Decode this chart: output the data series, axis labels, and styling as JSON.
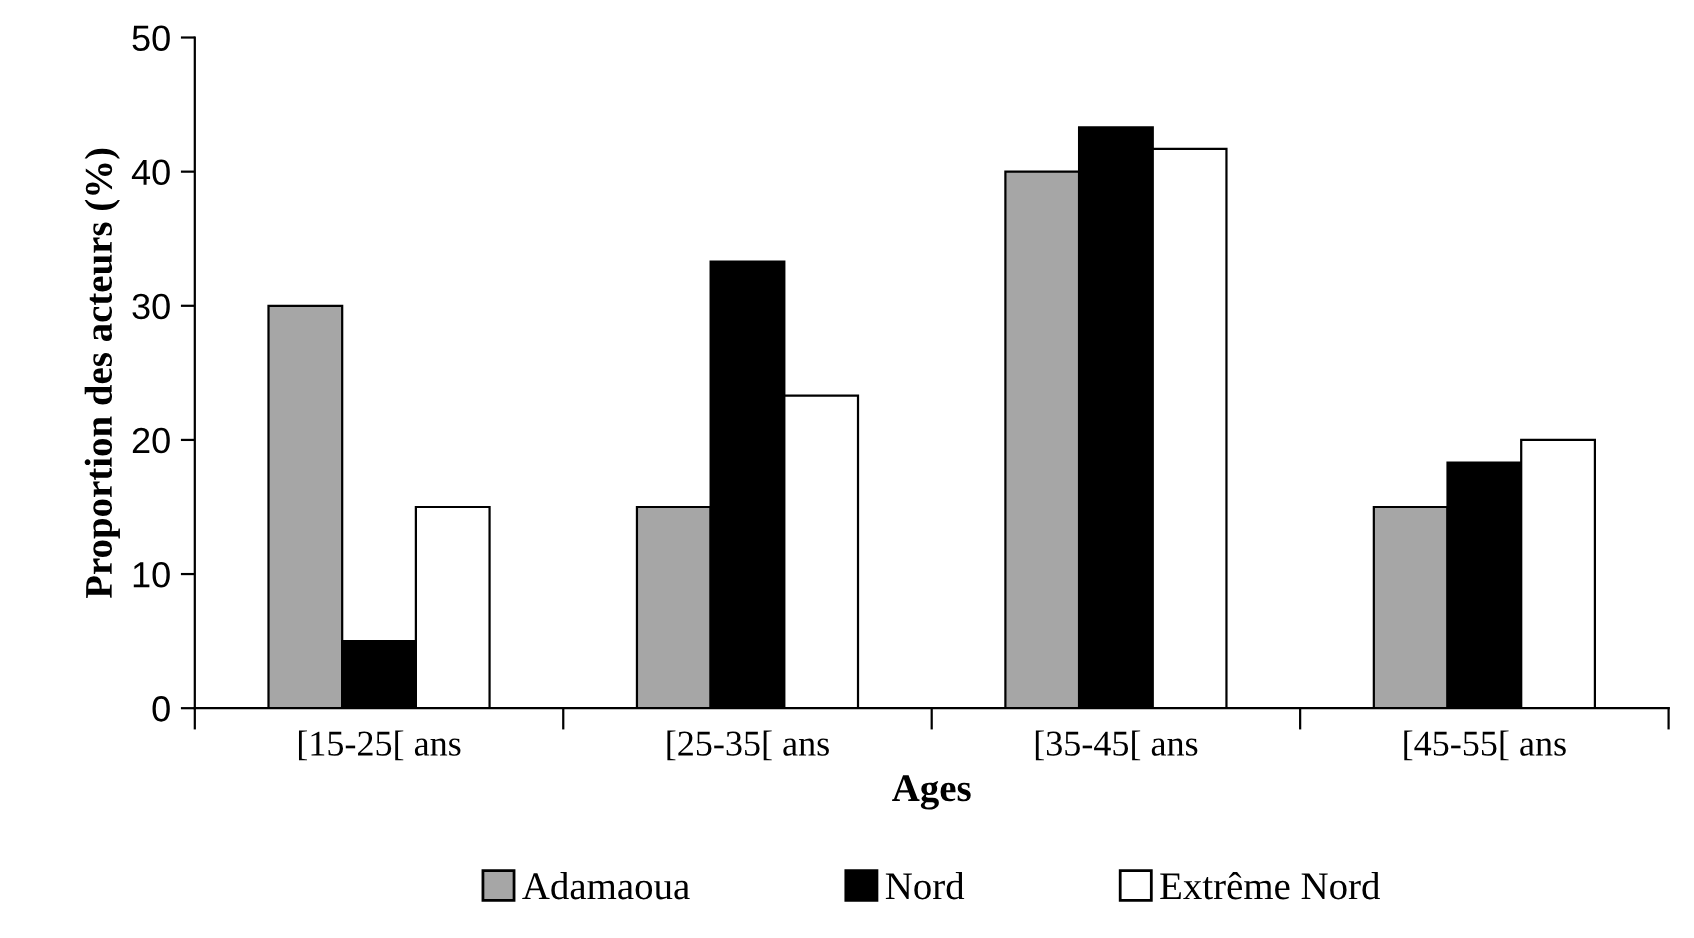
{
  "chart_data": {
    "type": "bar",
    "xlabel": "Ages",
    "ylabel": "Proportion des acteurs (%)",
    "categories": [
      "[15-25[ ans",
      "[25-35[ ans",
      "[35-45[ ans",
      "[45-55[ ans"
    ],
    "series": [
      {
        "name": "Adamaoua",
        "color": "#a6a6a6",
        "values": [
          30,
          15,
          40,
          15
        ]
      },
      {
        "name": "Nord",
        "color": "#000000",
        "values": [
          5,
          33.3,
          43.3,
          18.3
        ]
      },
      {
        "name": "Extrême Nord",
        "color": "#ffffff",
        "values": [
          15,
          23.3,
          41.7,
          20
        ]
      }
    ],
    "ylim": [
      0,
      50
    ],
    "yticks": [
      0,
      10,
      20,
      30,
      40,
      50
    ],
    "grid": false,
    "legend": "bottom"
  }
}
